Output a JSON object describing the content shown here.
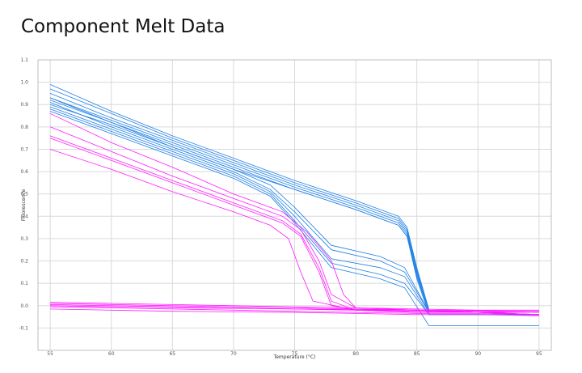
{
  "title": "Component Melt Data",
  "chart_data": {
    "type": "line",
    "title": "Component Melt Data",
    "xlabel": "Temperature (°C)",
    "ylabel": "Fluorescence",
    "xlim": [
      54,
      96
    ],
    "ylim": [
      -0.2,
      1.1
    ],
    "x_ticks": [
      55,
      60,
      65,
      70,
      75,
      80,
      85,
      90,
      95
    ],
    "y_ticks": [
      1.1,
      1.0,
      0.9,
      0.8,
      0.7,
      0.6,
      0.5,
      0.4,
      0.3,
      0.2,
      0.1,
      0.0,
      -0.1
    ],
    "y_tick_labels": [
      "1.1",
      "1.0",
      "0.9",
      "0.8",
      "0.7",
      "0.6",
      "0.5",
      "0.4",
      "0.3",
      "0.2",
      "0.1",
      "0.0",
      "-0.1"
    ],
    "grid": true,
    "legend": "none",
    "colors": {
      "blue": "#1e7fe6",
      "magenta": "#ff19ff"
    },
    "series": [
      {
        "color": "blue",
        "x": [
          55,
          60,
          65,
          70,
          75,
          80,
          83.5,
          84.2,
          85,
          86,
          90,
          95
        ],
        "y": [
          0.95,
          0.84,
          0.74,
          0.64,
          0.54,
          0.45,
          0.38,
          0.33,
          0.15,
          -0.03,
          -0.03,
          -0.03
        ]
      },
      {
        "color": "blue",
        "x": [
          55,
          60,
          65,
          70,
          75,
          80,
          83.5,
          84.2,
          85,
          86,
          90,
          95
        ],
        "y": [
          0.93,
          0.83,
          0.73,
          0.63,
          0.53,
          0.44,
          0.37,
          0.32,
          0.14,
          -0.03,
          -0.03,
          -0.03
        ]
      },
      {
        "color": "blue",
        "x": [
          55,
          60,
          65,
          70,
          75,
          80,
          83.5,
          84.2,
          85,
          86,
          90,
          95
        ],
        "y": [
          0.92,
          0.82,
          0.72,
          0.62,
          0.52,
          0.43,
          0.36,
          0.31,
          0.13,
          -0.03,
          -0.03,
          -0.04
        ]
      },
      {
        "color": "blue",
        "x": [
          55,
          60,
          65,
          70,
          75,
          80,
          83.5,
          84.2,
          85,
          86,
          90,
          95
        ],
        "y": [
          0.97,
          0.86,
          0.75,
          0.65,
          0.55,
          0.46,
          0.39,
          0.34,
          0.16,
          -0.02,
          -0.03,
          -0.03
        ]
      },
      {
        "color": "blue",
        "x": [
          55,
          60,
          65,
          70,
          75,
          80,
          83.5,
          84.2,
          85,
          86,
          90,
          95
        ],
        "y": [
          0.99,
          0.87,
          0.76,
          0.66,
          0.56,
          0.47,
          0.4,
          0.35,
          0.17,
          -0.02,
          -0.03,
          -0.03
        ]
      },
      {
        "color": "blue",
        "x": [
          55,
          60,
          65,
          70,
          75,
          80,
          83.5,
          84.2,
          85,
          86,
          90,
          95
        ],
        "y": [
          0.9,
          0.81,
          0.71,
          0.61,
          0.52,
          0.43,
          0.36,
          0.31,
          0.12,
          -0.04,
          -0.04,
          -0.04
        ]
      },
      {
        "color": "blue",
        "x": [
          55,
          60,
          65,
          70,
          73,
          75,
          78,
          82,
          84,
          86,
          90,
          95
        ],
        "y": [
          0.93,
          0.82,
          0.71,
          0.61,
          0.54,
          0.44,
          0.27,
          0.22,
          0.17,
          -0.03,
          -0.03,
          -0.03
        ]
      },
      {
        "color": "blue",
        "x": [
          55,
          60,
          65,
          70,
          73,
          75,
          78,
          82,
          84,
          86,
          90,
          95
        ],
        "y": [
          0.91,
          0.8,
          0.7,
          0.6,
          0.52,
          0.42,
          0.25,
          0.2,
          0.15,
          -0.03,
          -0.03,
          -0.04
        ]
      },
      {
        "color": "blue",
        "x": [
          55,
          60,
          65,
          70,
          73,
          75,
          78,
          82,
          84,
          86,
          90,
          95
        ],
        "y": [
          0.89,
          0.79,
          0.69,
          0.59,
          0.51,
          0.4,
          0.21,
          0.17,
          0.13,
          -0.04,
          -0.04,
          -0.04
        ]
      },
      {
        "color": "blue",
        "x": [
          55,
          60,
          65,
          70,
          73,
          75,
          78,
          82,
          84,
          86,
          90,
          95
        ],
        "y": [
          0.88,
          0.78,
          0.68,
          0.58,
          0.5,
          0.38,
          0.19,
          0.14,
          0.1,
          -0.04,
          -0.04,
          -0.04
        ]
      },
      {
        "color": "blue",
        "x": [
          55,
          60,
          65,
          70,
          73,
          75,
          78,
          82,
          84,
          86,
          90,
          95
        ],
        "y": [
          0.87,
          0.77,
          0.67,
          0.57,
          0.49,
          0.37,
          0.17,
          0.12,
          0.08,
          -0.09,
          -0.09,
          -0.09
        ]
      },
      {
        "color": "magenta",
        "x": [
          55,
          60,
          65,
          70,
          74,
          75.5,
          77,
          78,
          80,
          85,
          90,
          95
        ],
        "y": [
          0.8,
          0.69,
          0.58,
          0.48,
          0.4,
          0.34,
          0.2,
          0.05,
          -0.01,
          -0.02,
          -0.03,
          -0.03
        ]
      },
      {
        "color": "magenta",
        "x": [
          55,
          60,
          65,
          70,
          74,
          75.5,
          77,
          78,
          80,
          85,
          90,
          95
        ],
        "y": [
          0.76,
          0.66,
          0.56,
          0.46,
          0.38,
          0.32,
          0.17,
          0.02,
          -0.02,
          -0.02,
          -0.03,
          -0.03
        ]
      },
      {
        "color": "magenta",
        "x": [
          55,
          60,
          65,
          70,
          74,
          75.5,
          77,
          78,
          80,
          85,
          90,
          95
        ],
        "y": [
          0.75,
          0.65,
          0.55,
          0.45,
          0.37,
          0.31,
          0.15,
          0.0,
          -0.02,
          -0.03,
          -0.03,
          -0.04
        ]
      },
      {
        "color": "magenta",
        "x": [
          55,
          60,
          65,
          70,
          73,
          74.5,
          75.5,
          76.5,
          80,
          85,
          90,
          95
        ],
        "y": [
          0.7,
          0.61,
          0.51,
          0.42,
          0.36,
          0.3,
          0.15,
          0.02,
          -0.02,
          -0.03,
          -0.03,
          -0.04
        ]
      },
      {
        "color": "magenta",
        "x": [
          55,
          60,
          65,
          70,
          74,
          76,
          78,
          79,
          80,
          85,
          90,
          95
        ],
        "y": [
          0.86,
          0.73,
          0.62,
          0.5,
          0.42,
          0.33,
          0.2,
          0.05,
          -0.01,
          -0.02,
          -0.03,
          -0.03
        ]
      },
      {
        "color": "magenta",
        "x": [
          55,
          60,
          65,
          70,
          75,
          80,
          85,
          90,
          95
        ],
        "y": [
          0.015,
          0.01,
          0.005,
          0.0,
          -0.005,
          -0.01,
          -0.015,
          -0.02,
          -0.02
        ]
      },
      {
        "color": "magenta",
        "x": [
          55,
          60,
          65,
          70,
          75,
          80,
          85,
          90,
          95
        ],
        "y": [
          0.005,
          0.0,
          -0.005,
          -0.01,
          -0.015,
          -0.02,
          -0.025,
          -0.03,
          -0.03
        ]
      },
      {
        "color": "magenta",
        "x": [
          55,
          60,
          65,
          70,
          75,
          80,
          85,
          90,
          95
        ],
        "y": [
          -0.005,
          -0.01,
          -0.015,
          -0.02,
          -0.025,
          -0.03,
          -0.035,
          -0.035,
          -0.04
        ]
      },
      {
        "color": "magenta",
        "x": [
          55,
          60,
          65,
          70,
          75,
          80,
          85,
          90,
          95
        ],
        "y": [
          -0.015,
          -0.02,
          -0.025,
          -0.028,
          -0.03,
          -0.035,
          -0.04,
          -0.04,
          -0.045
        ]
      },
      {
        "color": "magenta",
        "x": [
          55,
          60,
          65,
          70,
          75,
          80,
          85,
          90,
          95
        ],
        "y": [
          0.0,
          -0.005,
          -0.01,
          -0.012,
          -0.015,
          -0.018,
          -0.02,
          -0.022,
          -0.025
        ]
      },
      {
        "color": "magenta",
        "x": [
          55,
          60,
          65,
          70,
          75,
          80,
          85,
          90,
          95
        ],
        "y": [
          0.01,
          0.005,
          0.0,
          -0.005,
          -0.01,
          -0.015,
          -0.02,
          -0.025,
          -0.03
        ]
      }
    ]
  }
}
